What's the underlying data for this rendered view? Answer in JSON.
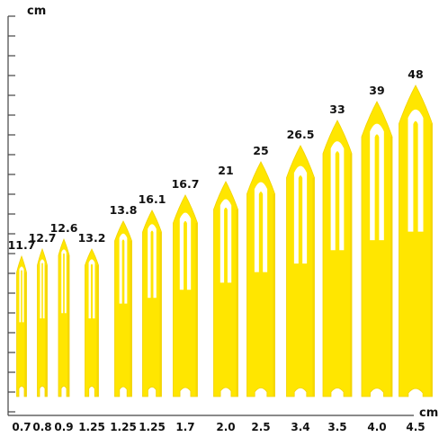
{
  "unit_top": "cm",
  "unit_bottom": "cm",
  "needles": [
    {
      "length": "11.7",
      "width": "0.7"
    },
    {
      "length": "12.7",
      "width": "0.8"
    },
    {
      "length": "12.6",
      "width": "0.9"
    },
    {
      "length": "13.2",
      "width": "1.25"
    },
    {
      "length": "13.8",
      "width": "1.25"
    },
    {
      "length": "16.1",
      "width": "1.25"
    },
    {
      "length": "16.7",
      "width": "1.7"
    },
    {
      "length": "21",
      "width": "2.0"
    },
    {
      "length": "25",
      "width": "2.5"
    },
    {
      "length": "26.5",
      "width": "3.4"
    },
    {
      "length": "33",
      "width": "3.5"
    },
    {
      "length": "39",
      "width": "4.0"
    },
    {
      "length": "48",
      "width": "4.5"
    }
  ],
  "colors": {
    "needle": "#ffe600",
    "needle_shade": "#f2d200",
    "axis": "#444444",
    "text": "#111111"
  }
}
